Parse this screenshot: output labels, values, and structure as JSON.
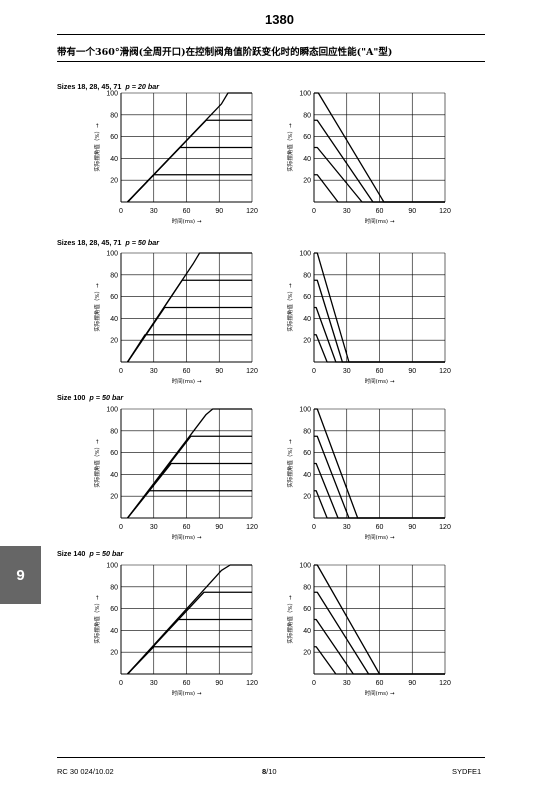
{
  "page": {
    "number": "1380",
    "heading": "带有一个360°滑阀(全周开口)在控制阀角值阶跃变化时的瞬态回应性能(\"A\"型)",
    "chapter_tab": "9",
    "footer": {
      "left": "RC 30 024/10.02",
      "center_page": "8",
      "center_total": "/10",
      "right": "SYDFE1"
    }
  },
  "sections": [
    {
      "label": "Sizes 18, 28, 45, 71",
      "pressure": "p = 20 bar"
    },
    {
      "label": "Sizes 18, 28, 45, 71",
      "pressure": "p = 50 bar"
    },
    {
      "label": "Size 100",
      "pressure": "p = 50 bar"
    },
    {
      "label": "Size 140",
      "pressure": "p = 50 bar"
    }
  ],
  "axes": {
    "xlabel": "时间(ms) →",
    "ylabel": "实际摆角值（%）→",
    "xticks": [
      "0",
      "30",
      "60",
      "90",
      "120"
    ],
    "yticks": [
      "20",
      "40",
      "60",
      "80",
      "100"
    ],
    "xlim": [
      0,
      120
    ],
    "ylim": [
      0,
      100
    ]
  },
  "chart_data": [
    {
      "type": "line",
      "section": 0,
      "name": "step-up",
      "series": [
        {
          "values": [
            [
              6,
              0
            ],
            [
              30,
              25
            ],
            [
              120,
              25
            ]
          ]
        },
        {
          "values": [
            [
              6,
              0
            ],
            [
              54,
              50
            ],
            [
              120,
              50
            ]
          ]
        },
        {
          "values": [
            [
              6,
              0
            ],
            [
              78,
              75
            ],
            [
              120,
              75
            ]
          ]
        },
        {
          "values": [
            [
              6,
              0
            ],
            [
              92,
              90
            ],
            [
              98,
              100
            ],
            [
              120,
              100
            ]
          ]
        }
      ]
    },
    {
      "type": "line",
      "section": 0,
      "name": "step-down",
      "series": [
        {
          "values": [
            [
              0,
              25
            ],
            [
              3,
              25
            ],
            [
              22,
              0
            ],
            [
              120,
              0
            ]
          ]
        },
        {
          "values": [
            [
              0,
              50
            ],
            [
              3,
              50
            ],
            [
              44,
              0
            ],
            [
              120,
              0
            ]
          ]
        },
        {
          "values": [
            [
              0,
              75
            ],
            [
              3,
              75
            ],
            [
              54,
              0
            ],
            [
              120,
              0
            ]
          ]
        },
        {
          "values": [
            [
              0,
              100
            ],
            [
              4,
              100
            ],
            [
              64,
              0
            ],
            [
              120,
              0
            ]
          ]
        }
      ]
    },
    {
      "type": "line",
      "section": 1,
      "name": "step-up",
      "series": [
        {
          "values": [
            [
              6,
              0
            ],
            [
              22,
              25
            ],
            [
              120,
              25
            ]
          ]
        },
        {
          "values": [
            [
              6,
              0
            ],
            [
              40,
              50
            ],
            [
              120,
              50
            ]
          ]
        },
        {
          "values": [
            [
              6,
              0
            ],
            [
              56,
              75
            ],
            [
              120,
              75
            ]
          ]
        },
        {
          "values": [
            [
              6,
              0
            ],
            [
              66,
              90
            ],
            [
              72,
              100
            ],
            [
              120,
              100
            ]
          ]
        }
      ]
    },
    {
      "type": "line",
      "section": 1,
      "name": "step-down",
      "series": [
        {
          "values": [
            [
              0,
              25
            ],
            [
              2,
              25
            ],
            [
              12,
              0
            ],
            [
              120,
              0
            ]
          ]
        },
        {
          "values": [
            [
              0,
              50
            ],
            [
              2,
              50
            ],
            [
              20,
              0
            ],
            [
              120,
              0
            ]
          ]
        },
        {
          "values": [
            [
              0,
              75
            ],
            [
              3,
              75
            ],
            [
              26,
              0
            ],
            [
              120,
              0
            ]
          ]
        },
        {
          "values": [
            [
              0,
              100
            ],
            [
              3,
              100
            ],
            [
              32,
              0
            ],
            [
              120,
              0
            ]
          ]
        }
      ]
    },
    {
      "type": "line",
      "section": 2,
      "name": "step-up",
      "series": [
        {
          "values": [
            [
              6,
              0
            ],
            [
              26,
              25
            ],
            [
              120,
              25
            ]
          ]
        },
        {
          "values": [
            [
              6,
              0
            ],
            [
              46,
              50
            ],
            [
              120,
              50
            ]
          ]
        },
        {
          "values": [
            [
              6,
              0
            ],
            [
              64,
              75
            ],
            [
              120,
              75
            ]
          ]
        },
        {
          "values": [
            [
              6,
              0
            ],
            [
              78,
              95
            ],
            [
              84,
              100
            ],
            [
              120,
              100
            ]
          ]
        }
      ]
    },
    {
      "type": "line",
      "section": 2,
      "name": "step-down",
      "series": [
        {
          "values": [
            [
              0,
              25
            ],
            [
              2,
              25
            ],
            [
              12,
              0
            ],
            [
              120,
              0
            ]
          ]
        },
        {
          "values": [
            [
              0,
              50
            ],
            [
              2,
              50
            ],
            [
              22,
              0
            ],
            [
              120,
              0
            ]
          ]
        },
        {
          "values": [
            [
              0,
              75
            ],
            [
              3,
              75
            ],
            [
              32,
              0
            ],
            [
              120,
              0
            ]
          ]
        },
        {
          "values": [
            [
              0,
              100
            ],
            [
              3,
              100
            ],
            [
              40,
              0
            ],
            [
              120,
              0
            ]
          ]
        }
      ]
    },
    {
      "type": "line",
      "section": 3,
      "name": "step-up",
      "series": [
        {
          "values": [
            [
              6,
              0
            ],
            [
              30,
              25
            ],
            [
              120,
              25
            ]
          ]
        },
        {
          "values": [
            [
              6,
              0
            ],
            [
              52,
              50
            ],
            [
              120,
              50
            ]
          ]
        },
        {
          "values": [
            [
              6,
              0
            ],
            [
              76,
              75
            ],
            [
              120,
              75
            ]
          ]
        },
        {
          "values": [
            [
              6,
              0
            ],
            [
              92,
              95
            ],
            [
              100,
              100
            ],
            [
              120,
              100
            ]
          ]
        }
      ]
    },
    {
      "type": "line",
      "section": 3,
      "name": "step-down",
      "series": [
        {
          "values": [
            [
              0,
              25
            ],
            [
              2,
              25
            ],
            [
              20,
              0
            ],
            [
              120,
              0
            ]
          ]
        },
        {
          "values": [
            [
              0,
              50
            ],
            [
              2,
              50
            ],
            [
              36,
              0
            ],
            [
              120,
              0
            ]
          ]
        },
        {
          "values": [
            [
              0,
              75
            ],
            [
              3,
              75
            ],
            [
              50,
              0
            ],
            [
              120,
              0
            ]
          ]
        },
        {
          "values": [
            [
              0,
              100
            ],
            [
              3,
              100
            ],
            [
              60,
              0
            ],
            [
              120,
              0
            ]
          ]
        }
      ]
    }
  ]
}
